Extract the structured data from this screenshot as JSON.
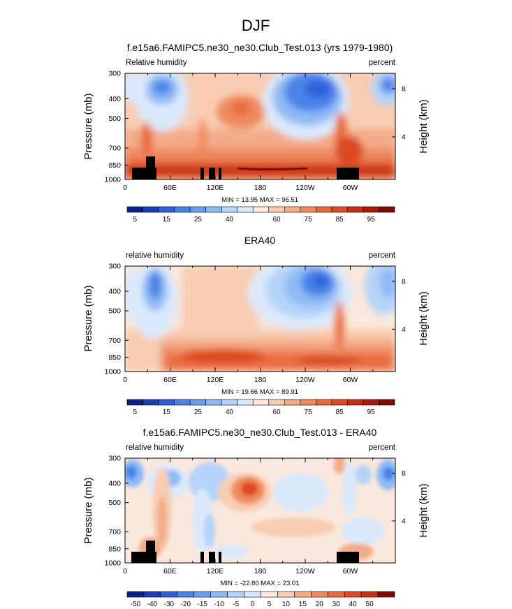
{
  "figure_title": "DJF",
  "chart_data": [
    {
      "type": "heatmap",
      "title": "f.e15a6.FAMIPC5.ne30_ne30.Club_Test.013 (yrs 1979-1980)",
      "variable_label": "Relative humidity",
      "units_label": "percent",
      "ylabel": "Pressure (mb)",
      "y2label": "Height (km)",
      "xticks": [
        "0",
        "60E",
        "120E",
        "180",
        "120W",
        "60W"
      ],
      "yticks": [
        "300",
        "400",
        "500",
        "700",
        "850",
        "1000"
      ],
      "y2ticks": [
        "8",
        "4"
      ],
      "stats": "MIN =  13.95  MAX =  96.51",
      "colorbar": {
        "labels": [
          "5",
          "15",
          "25",
          "40",
          "60",
          "75",
          "85",
          "95"
        ],
        "colors": [
          "#0b1f8a",
          "#1c3bb5",
          "#2f5fd8",
          "#4a83e8",
          "#6a9ff0",
          "#8fbaf5",
          "#b5d3fa",
          "#dbe9fc",
          "#fbe8de",
          "#f8cdb3",
          "#f4ab88",
          "#ef8a60",
          "#e9693c",
          "#dc4a22",
          "#c53014",
          "#a51c0c",
          "#7d0c06"
        ]
      }
    },
    {
      "type": "heatmap",
      "title": "ERA40",
      "variable_label": "relative humidity",
      "units_label": "percent",
      "ylabel": "Pressure (mb)",
      "y2label": "Height (km)",
      "xticks": [
        "0",
        "60E",
        "120E",
        "180",
        "120W",
        "60W"
      ],
      "yticks": [
        "300",
        "400",
        "500",
        "700",
        "850",
        "1000"
      ],
      "y2ticks": [
        "8",
        "4"
      ],
      "stats": "MIN =  19.66  MAX =  89.91",
      "colorbar": {
        "labels": [
          "5",
          "15",
          "25",
          "40",
          "60",
          "75",
          "85",
          "95"
        ],
        "colors": [
          "#0b1f8a",
          "#1c3bb5",
          "#2f5fd8",
          "#4a83e8",
          "#6a9ff0",
          "#8fbaf5",
          "#b5d3fa",
          "#dbe9fc",
          "#fbe8de",
          "#f8cdb3",
          "#f4ab88",
          "#ef8a60",
          "#e9693c",
          "#dc4a22",
          "#c53014",
          "#a51c0c",
          "#7d0c06"
        ]
      }
    },
    {
      "type": "heatmap",
      "title": "f.e15a6.FAMIPC5.ne30_ne30.Club_Test.013 - ERA40",
      "variable_label": "relative humidity",
      "units_label": "percent",
      "ylabel": "Pressure (mb)",
      "y2label": "Height (km)",
      "xticks": [
        "0",
        "60E",
        "120E",
        "180",
        "120W",
        "60W"
      ],
      "yticks": [
        "300",
        "400",
        "500",
        "700",
        "850",
        "1000"
      ],
      "y2ticks": [
        "8",
        "4"
      ],
      "stats": "MIN = -22.80  MAX =  23.01",
      "colorbar": {
        "labels": [
          "-50",
          "-40",
          "-30",
          "-20",
          "-15",
          "-10",
          "-5",
          "0",
          "5",
          "10",
          "15",
          "20",
          "30",
          "40",
          "50"
        ],
        "colors": [
          "#0b1f8a",
          "#1c3bb5",
          "#2f5fd8",
          "#4a83e8",
          "#6a9ff0",
          "#8fbaf5",
          "#b5d3fa",
          "#dbe9fc",
          "#fbe8de",
          "#f8cdb3",
          "#f4ab88",
          "#ef8a60",
          "#e9693c",
          "#dc4a22",
          "#c53014",
          "#7d0c06"
        ]
      }
    }
  ]
}
